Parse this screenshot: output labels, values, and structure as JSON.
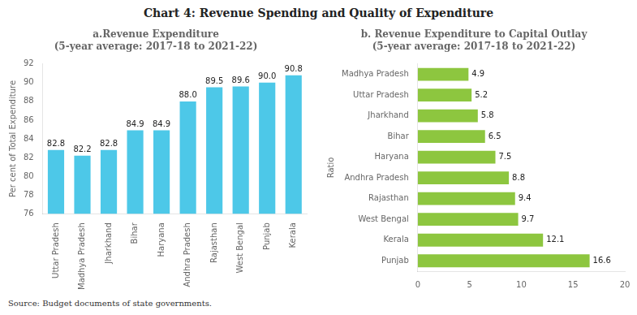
{
  "title": "Chart 4: Revenue Spending and Quality of Expenditure",
  "annotations": [
    "Source: Budget documents of state governments."
  ],
  "chart_data": [
    {
      "type": "bar",
      "title": "a.Revenue Expenditure\n(5-year average: 2017-18 to 2021-22)",
      "categories": [
        "Uttar Pradesh",
        "Madhya Pradesh",
        "Jharkhand",
        "Bihar",
        "Haryana",
        "Andhra Pradesh",
        "Rajasthan",
        "West Bengal",
        "Punjab",
        "Kerala"
      ],
      "values": [
        82.8,
        82.2,
        82.8,
        84.9,
        84.9,
        88.0,
        89.5,
        89.6,
        90.0,
        90.8
      ],
      "value_labels": [
        "82.8",
        "82.2",
        "82.8",
        "84.9",
        "84.9",
        "88.0",
        "89.5",
        "89.6",
        "90.0",
        "90.8"
      ],
      "color": "#4DC8E8",
      "ylim": [
        76,
        92
      ],
      "yticks": [
        76,
        78,
        80,
        82,
        84,
        86,
        88,
        90,
        92
      ],
      "y_label": "Per cent of Total Expenditure",
      "data_labels": true,
      "grid": false
    },
    {
      "type": "bar",
      "orientation": "horizontal",
      "title": "b. Revenue Expenditure to Capital Outlay\n(5-year average: 2017-18 to 2021-22)",
      "categories": [
        "Madhya Pradesh",
        "Uttar Pradesh",
        "Jharkhand",
        "Bihar",
        "Haryana",
        "Andhra Pradesh",
        "Rajasthan",
        "West Bengal",
        "Kerala",
        "Punjab"
      ],
      "values": [
        4.9,
        5.2,
        5.8,
        6.5,
        7.5,
        8.8,
        9.4,
        9.7,
        12.1,
        16.6
      ],
      "color": "#8DC63F",
      "xlim": [
        0,
        20
      ],
      "xticks": [
        0,
        5,
        10,
        15,
        20
      ],
      "y_label": "Ratio",
      "data_labels": true,
      "grid": false
    }
  ]
}
